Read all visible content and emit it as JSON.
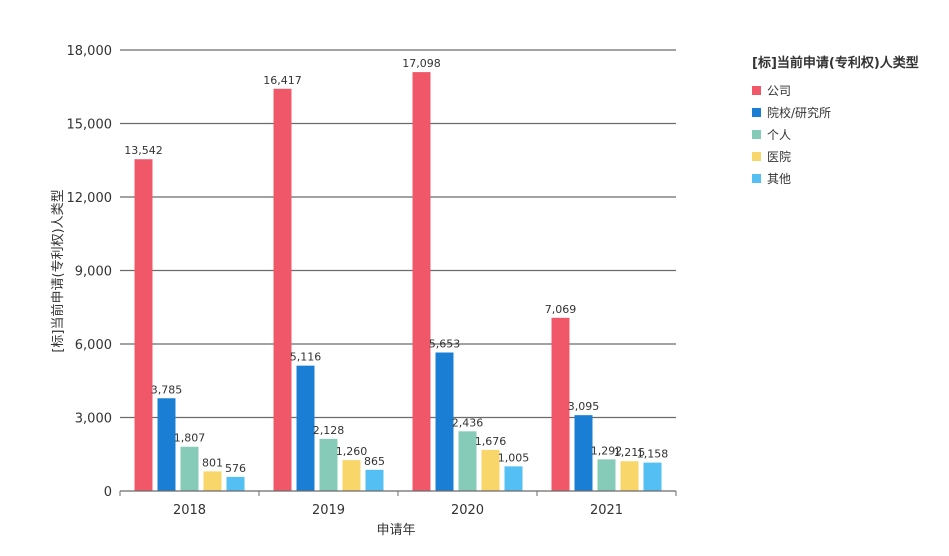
{
  "chart_data": {
    "type": "bar",
    "xlabel": "申请年",
    "ylabel": "[标]当前申请(专利权)人类型",
    "categories": [
      "2018",
      "2019",
      "2020",
      "2021"
    ],
    "ylim": [
      0,
      18000
    ],
    "yticks": [
      "0",
      "3,000",
      "6,000",
      "9,000",
      "12,000",
      "15,000",
      "18,000"
    ],
    "ytick_values": [
      0,
      3000,
      6000,
      9000,
      12000,
      15000,
      18000
    ],
    "grid": true,
    "legend_position": "right",
    "legend_title": "[标]当前申请(专利权)人类型",
    "series": [
      {
        "name": "公司",
        "color": "#f0586a",
        "values": [
          13542,
          16417,
          17098,
          7069
        ],
        "labels": [
          "13,542",
          "16,417",
          "17,098",
          "7,069"
        ]
      },
      {
        "name": "院校/研究所",
        "color": "#1a7fd4",
        "values": [
          3785,
          5116,
          5653,
          3095
        ],
        "labels": [
          "3,785",
          "5,116",
          "5,653",
          "3,095"
        ]
      },
      {
        "name": "个人",
        "color": "#86cbb8",
        "values": [
          1807,
          2128,
          2436,
          1292
        ],
        "labels": [
          "1,807",
          "2,128",
          "2,436",
          "1,292"
        ]
      },
      {
        "name": "医院",
        "color": "#f8d66a",
        "values": [
          801,
          1260,
          1676,
          1215
        ],
        "labels": [
          "801",
          "1,260",
          "1,676",
          "1,215"
        ]
      },
      {
        "name": "其他",
        "color": "#53bff2",
        "values": [
          576,
          865,
          1005,
          1158
        ],
        "labels": [
          "576",
          "865",
          "1,005",
          "1,158"
        ]
      }
    ]
  }
}
